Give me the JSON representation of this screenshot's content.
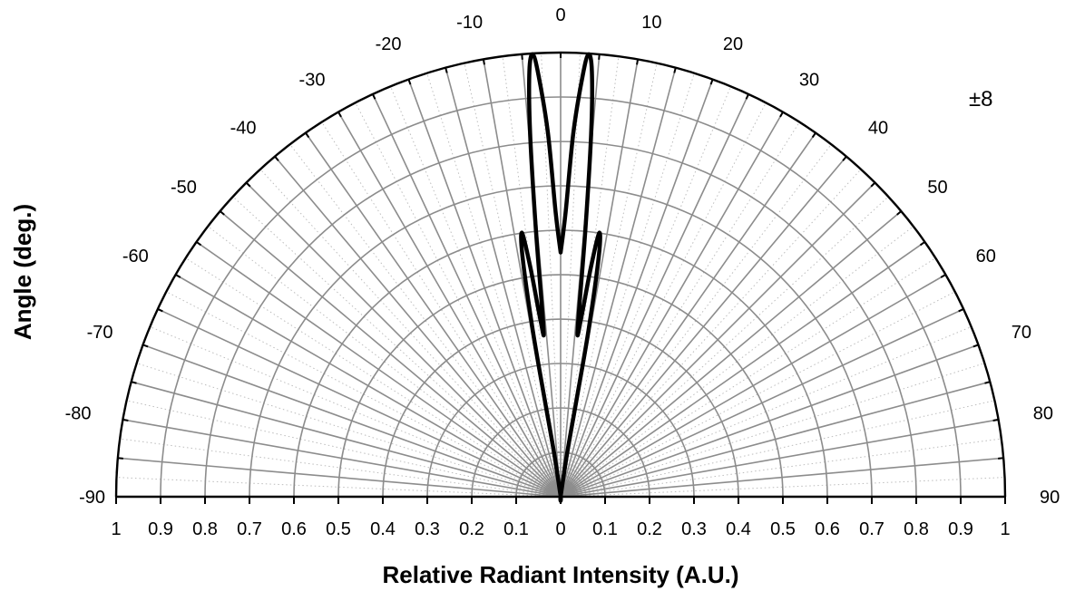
{
  "chart_data": {
    "type": "polar",
    "ylabel": "Angle (deg.)",
    "xlabel": "Relative Radiant Intensity (A.U.)",
    "annotation": "±8",
    "angle_ticks": [
      "-90",
      "-80",
      "-70",
      "-60",
      "-50",
      "-40",
      "-30",
      "-20",
      "-10",
      "0",
      "10",
      "20",
      "30",
      "40",
      "50",
      "60",
      "70",
      "80",
      "90"
    ],
    "radial_ticks_left": [
      "1",
      "0.9",
      "0.8",
      "0.7",
      "0.6",
      "0.5",
      "0.4",
      "0.3",
      "0.2",
      "0.1"
    ],
    "radial_ticks_center": "0",
    "radial_ticks_right": [
      "0.1",
      "0.2",
      "0.3",
      "0.4",
      "0.5",
      "0.6",
      "0.7",
      "0.8",
      "0.9",
      "1"
    ],
    "angle_range": [
      -90,
      90
    ],
    "radial_range": [
      0,
      1
    ],
    "grid": true,
    "line_color": "#000000",
    "grid_color": "#8c8c8c",
    "series": [
      {
        "points": [
          {
            "angle": 0,
            "intensity": 0.55
          },
          {
            "angle": 1,
            "intensity": 0.64
          },
          {
            "angle": 2,
            "intensity": 0.82
          },
          {
            "angle": 3,
            "intensity": 0.95
          },
          {
            "angle": 3.6,
            "intensity": 0.998
          },
          {
            "angle": 4.2,
            "intensity": 0.96
          },
          {
            "angle": 4.8,
            "intensity": 0.82
          },
          {
            "angle": 5.3,
            "intensity": 0.6
          },
          {
            "angle": 5.8,
            "intensity": 0.38
          },
          {
            "angle": 6.5,
            "intensity": 0.4
          },
          {
            "angle": 7.5,
            "intensity": 0.52
          },
          {
            "angle": 8.3,
            "intensity": 0.6
          },
          {
            "angle": 9.0,
            "intensity": 0.55
          },
          {
            "angle": 9.5,
            "intensity": 0.38
          },
          {
            "angle": 9.3,
            "intensity": 0.22
          },
          {
            "angle": 8.5,
            "intensity": 0.1
          },
          {
            "angle": 5,
            "intensity": 0.003
          },
          {
            "angle": -5,
            "intensity": 0.003
          },
          {
            "angle": -8.5,
            "intensity": 0.1
          },
          {
            "angle": -9.3,
            "intensity": 0.22
          },
          {
            "angle": -9.5,
            "intensity": 0.38
          },
          {
            "angle": -9.0,
            "intensity": 0.55
          },
          {
            "angle": -8.3,
            "intensity": 0.6
          },
          {
            "angle": -7.5,
            "intensity": 0.52
          },
          {
            "angle": -6.5,
            "intensity": 0.4
          },
          {
            "angle": -5.8,
            "intensity": 0.38
          },
          {
            "angle": -5.3,
            "intensity": 0.6
          },
          {
            "angle": -4.8,
            "intensity": 0.82
          },
          {
            "angle": -4.2,
            "intensity": 0.96
          },
          {
            "angle": -3.6,
            "intensity": 0.998
          },
          {
            "angle": -3,
            "intensity": 0.95
          },
          {
            "angle": -2,
            "intensity": 0.82
          },
          {
            "angle": -1,
            "intensity": 0.64
          },
          {
            "angle": 0,
            "intensity": 0.55
          }
        ]
      }
    ]
  }
}
